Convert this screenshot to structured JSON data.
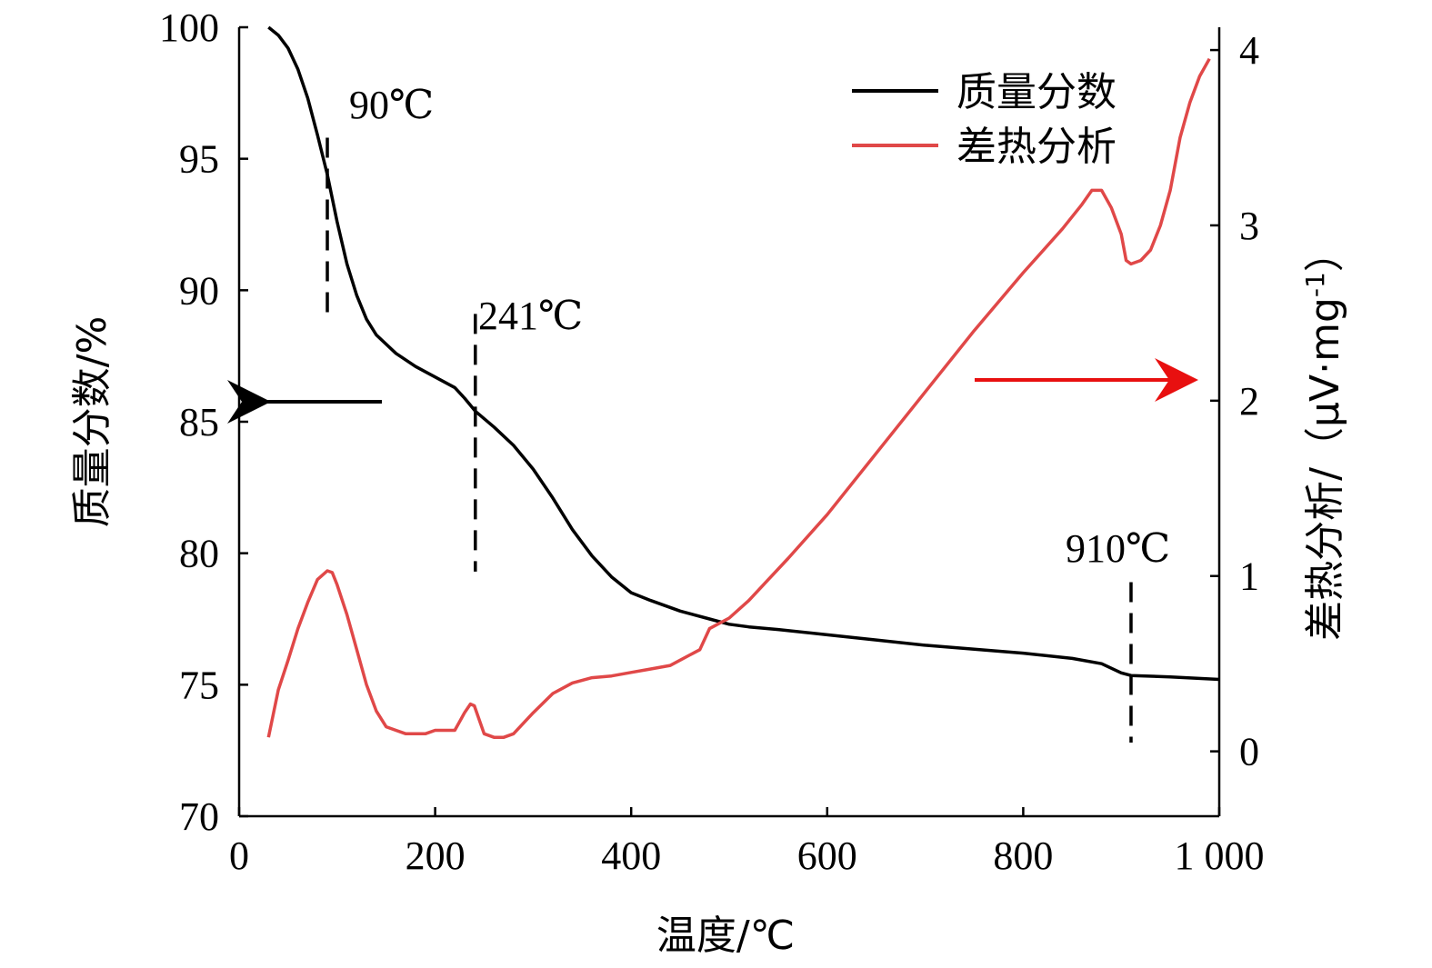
{
  "chart_data": {
    "type": "line",
    "xlabel": "温度/℃",
    "ylabel_left": "质量分数/%",
    "ylabel_right": "差热分析/（μV·mg",
    "ylabel_right_sup": "-1",
    "ylabel_right_close": "）",
    "xlim": [
      0,
      1000
    ],
    "ylim_left": [
      70,
      100
    ],
    "ylim_right": [
      -0.37,
      4.13
    ],
    "x_ticks": [
      0,
      200,
      400,
      600,
      800,
      1000
    ],
    "x_tick_labels": [
      "0",
      "200",
      "400",
      "600",
      "800",
      "1 000"
    ],
    "y_left_ticks": [
      70,
      75,
      80,
      85,
      90,
      95,
      100
    ],
    "y_left_tick_labels": [
      "70",
      "75",
      "80",
      "85",
      "90",
      "95",
      "100"
    ],
    "y_right_ticks": [
      0,
      1,
      2,
      3,
      4
    ],
    "y_right_tick_labels": [
      "0",
      "1",
      "2",
      "3",
      "4"
    ],
    "grid": false,
    "legend_position": "top-right",
    "colors": {
      "mass": "#000000",
      "dta": "#e04848",
      "arrow_right": "#e81010",
      "arrow_left": "#000000"
    },
    "series": [
      {
        "name": "质量分数",
        "axis": "left",
        "x": [
          30,
          40,
          50,
          60,
          70,
          80,
          90,
          100,
          110,
          120,
          130,
          140,
          160,
          180,
          200,
          220,
          230,
          241,
          260,
          280,
          300,
          320,
          340,
          360,
          380,
          400,
          420,
          450,
          480,
          500,
          520,
          550,
          600,
          650,
          700,
          750,
          800,
          850,
          880,
          900,
          910,
          950,
          1000
        ],
        "values": [
          100,
          99.7,
          99.2,
          98.4,
          97.3,
          95.9,
          94.4,
          92.6,
          91.0,
          89.8,
          88.9,
          88.3,
          87.6,
          87.1,
          86.7,
          86.3,
          85.9,
          85.4,
          84.8,
          84.1,
          83.2,
          82.1,
          80.9,
          79.9,
          79.1,
          78.5,
          78.2,
          77.8,
          77.5,
          77.3,
          77.2,
          77.1,
          76.9,
          76.7,
          76.5,
          76.35,
          76.2,
          76.0,
          75.8,
          75.45,
          75.35,
          75.3,
          75.2
        ]
      },
      {
        "name": "差热分析",
        "axis": "right",
        "x": [
          30,
          40,
          50,
          60,
          70,
          80,
          90,
          95,
          100,
          110,
          120,
          130,
          140,
          150,
          160,
          170,
          180,
          190,
          200,
          210,
          220,
          225,
          230,
          236,
          240,
          245,
          250,
          260,
          270,
          280,
          300,
          320,
          340,
          360,
          380,
          400,
          420,
          440,
          460,
          470,
          480,
          500,
          520,
          540,
          560,
          600,
          650,
          700,
          750,
          800,
          840,
          860,
          870,
          880,
          890,
          900,
          905,
          910,
          920,
          930,
          940,
          950,
          960,
          970,
          980,
          990
        ],
        "values": [
          0.08,
          0.35,
          0.52,
          0.7,
          0.85,
          0.98,
          1.03,
          1.02,
          0.95,
          0.78,
          0.58,
          0.38,
          0.23,
          0.14,
          0.12,
          0.1,
          0.1,
          0.1,
          0.12,
          0.12,
          0.12,
          0.17,
          0.22,
          0.27,
          0.26,
          0.18,
          0.1,
          0.08,
          0.08,
          0.1,
          0.22,
          0.33,
          0.39,
          0.42,
          0.43,
          0.45,
          0.47,
          0.49,
          0.55,
          0.58,
          0.7,
          0.76,
          0.86,
          0.98,
          1.1,
          1.35,
          1.7,
          2.05,
          2.4,
          2.73,
          2.98,
          3.12,
          3.2,
          3.2,
          3.1,
          2.95,
          2.8,
          2.78,
          2.8,
          2.86,
          3.0,
          3.2,
          3.5,
          3.7,
          3.85,
          3.95
        ]
      }
    ],
    "annotations": [
      {
        "text": "90℃",
        "x": 90
      },
      {
        "text": "241℃",
        "x": 241
      },
      {
        "text": "910℃",
        "x": 910
      }
    ]
  }
}
